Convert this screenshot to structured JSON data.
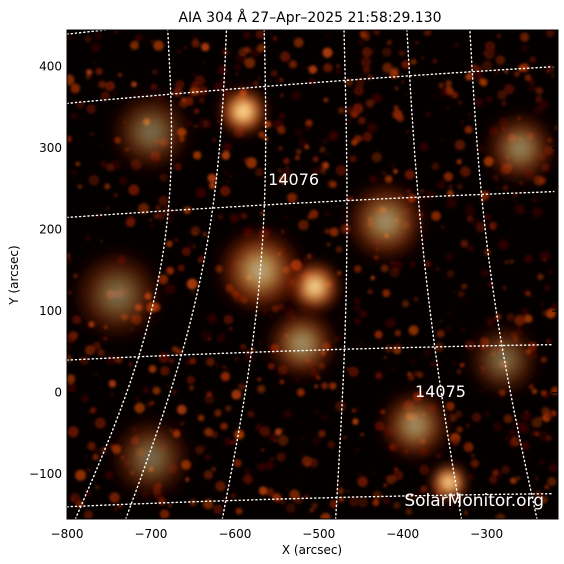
{
  "figure": {
    "title": "AIA 304 Å 27–Apr–2025 21:58:29.130",
    "watermark": "SolarMonitor.org",
    "colors": {
      "background": "#ffffff",
      "plot_bg": "#050000",
      "grid": "#ffffff",
      "region_label": "#ffffff"
    }
  },
  "axes": {
    "x": {
      "label": "X (arcsec)",
      "range": [
        -800,
        -215
      ],
      "ticks": [
        -800,
        -700,
        -600,
        -500,
        -400,
        -300
      ],
      "tick_labels": [
        "−800",
        "−700",
        "−600",
        "−500",
        "−400",
        "−300"
      ]
    },
    "y": {
      "label": "Y (arcsec)",
      "range": [
        -155,
        445
      ],
      "ticks": [
        -100,
        0,
        100,
        200,
        300,
        400
      ],
      "tick_labels": [
        "−100",
        "0",
        "100",
        "200",
        "300",
        "400"
      ]
    }
  },
  "regions": [
    {
      "label": "14076",
      "x": -530,
      "y": 255
    },
    {
      "label": "14075",
      "x": -355,
      "y": -5
    }
  ],
  "bright_features": [
    {
      "name": "plage-north",
      "x": -590,
      "y": 345,
      "intensity": 1.0,
      "size": 28
    },
    {
      "name": "core-14076",
      "x": -505,
      "y": 130,
      "intensity": 0.95,
      "size": 30
    },
    {
      "name": "loops-14076",
      "x": -570,
      "y": 150,
      "intensity": 0.7,
      "size": 48
    },
    {
      "name": "core-14075",
      "x": -345,
      "y": -110,
      "intensity": 1.0,
      "size": 22
    },
    {
      "name": "plage-14075",
      "x": -385,
      "y": -40,
      "intensity": 0.6,
      "size": 40
    },
    {
      "name": "plage-east",
      "x": -420,
      "y": 210,
      "intensity": 0.6,
      "size": 45
    },
    {
      "name": "plage-far-east",
      "x": -260,
      "y": 300,
      "intensity": 0.55,
      "size": 40
    },
    {
      "name": "plage-center",
      "x": -520,
      "y": 60,
      "intensity": 0.6,
      "size": 40
    },
    {
      "name": "network-west",
      "x": -740,
      "y": 120,
      "intensity": 0.45,
      "size": 50
    },
    {
      "name": "network-nw",
      "x": -700,
      "y": 320,
      "intensity": 0.45,
      "size": 45
    },
    {
      "name": "network-sw",
      "x": -700,
      "y": -80,
      "intensity": 0.45,
      "size": 45
    },
    {
      "name": "network-se",
      "x": -280,
      "y": 40,
      "intensity": 0.45,
      "size": 40
    }
  ]
}
